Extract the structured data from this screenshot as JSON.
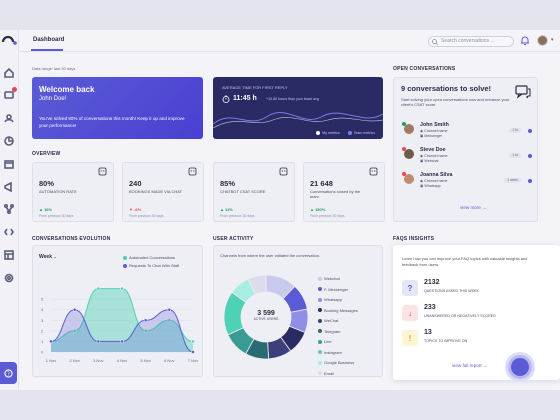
{
  "header": {
    "tab": "Dashboard",
    "search_placeholder": "Search conversations ..."
  },
  "date_range": "Data range: last 30 days",
  "welcome": {
    "title": "Welcome back",
    "name": "John Doe!",
    "message": "You've solved 80% of conversations this month! Keep it up and improve your performance!"
  },
  "first_reply": {
    "label": "AVERAGE TIME FOR FIRST REPLY",
    "value": "11:45 h",
    "delta": "+10.80 hours than your team avg",
    "legend_mine": "My metrics",
    "legend_team": "Team metrics"
  },
  "sections": {
    "overview": "OVERVIEW",
    "evolution": "CONVERSATIONS EVOLUTION",
    "user_activity": "USER ACTIVITY",
    "open_conversations": "OPEN CONVERSATIONS",
    "faqs": "FAQS INSIGHTS"
  },
  "kpis": [
    {
      "value": "80%",
      "label": "AUTOMATION RATE",
      "change": "16%",
      "prev": "From previous 30 days",
      "trend": "up"
    },
    {
      "value": "240",
      "label": "BOOKINGS MADE VIA CHAT",
      "change": "-6%",
      "prev": "From previous 30 days",
      "trend": "down"
    },
    {
      "value": "85%",
      "label": "CHATBOT CSAT SCORE",
      "change": "11%",
      "prev": "From previous 30 days",
      "trend": "up"
    },
    {
      "value": "21 648",
      "label": "Conversations closed by the team",
      "change": "150%",
      "prev": "From previous 30 days",
      "trend": "up"
    }
  ],
  "evolution": {
    "period": "Week",
    "legend": [
      "Automated Conversations",
      "Requests To Chat With Staff"
    ]
  },
  "chart_data": {
    "type": "area",
    "categories": [
      "1 Nov",
      "2 Nov",
      "3 Nov",
      "4 Nov",
      "5 Nov",
      "6 Nov",
      "7 Nov"
    ],
    "series": [
      {
        "name": "Automated Conversations",
        "values": [
          1,
          2,
          6,
          6,
          2,
          3,
          1
        ]
      },
      {
        "name": "Requests To Chat With Staff",
        "values": [
          1,
          4,
          1,
          1,
          3,
          4,
          0
        ]
      }
    ],
    "y_ticks": [
      "5",
      "4",
      "3",
      "2",
      "1",
      "0"
    ],
    "ylim": [
      0,
      7
    ]
  },
  "user_activity": {
    "subtitle": "Channels from where the user initiated the conversation.",
    "total": "3 599",
    "total_label": "ACTIVE USERS",
    "channels": [
      {
        "name": "Webchat",
        "value": 12,
        "color": "#c9c9ee"
      },
      {
        "name": "F. Messenger",
        "value": 10,
        "color": "#5b5bd6"
      },
      {
        "name": "Whatsapp",
        "value": 9,
        "color": "#8f8fe6"
      },
      {
        "name": "Booking Messages",
        "value": 9,
        "color": "#2a2b65"
      },
      {
        "name": "WeChat",
        "value": 9,
        "color": "#3d3f7a"
      },
      {
        "name": "Telegram",
        "value": 9,
        "color": "#2a6b73"
      },
      {
        "name": "Line",
        "value": 10,
        "color": "#3a9a94"
      },
      {
        "name": "Instagram",
        "value": 17,
        "color": "#4fd1b5"
      },
      {
        "name": "Google Business",
        "value": 8,
        "color": "#a9ece0"
      },
      {
        "name": "Email",
        "value": 7,
        "color": "#dcdcee"
      }
    ]
  },
  "open_conversations": {
    "headline": "9 conversations to solve!",
    "subtitle": "Start solving your open conversations now and enhance your client's CSAT score.",
    "items": [
      {
        "name": "John Smith",
        "channel_label": "Channel name",
        "channel": "Messenger",
        "time": "1 hr",
        "status_color": "#1f9d55",
        "avatar_color": "#a07a63"
      },
      {
        "name": "Steve Doe",
        "channel_label": "Channel name",
        "channel": "Webchat",
        "time": "1 hr",
        "status_color": "#e5484d",
        "avatar_color": "#6d5a4c"
      },
      {
        "name": "Joanna Silva",
        "channel_label": "Channel name",
        "channel": "Whatsapp",
        "time": "1 week",
        "status_color": "#e5484d",
        "avatar_color": "#c08a70"
      }
    ],
    "view_more": "view more"
  },
  "faqs": {
    "subtitle": "Learn how you can improve your FAQ topics with valuable insights and feedback from users.",
    "rows": [
      {
        "value": "2132",
        "label": "QUESTIONS ASKED THIS WEEK",
        "color": "#5b5bd6",
        "bg": "#e6e6fa"
      },
      {
        "value": "233",
        "label": "UNANSWERED OR NEGATIVELY SCORED",
        "color": "#e5484d",
        "bg": "#fde4e4"
      },
      {
        "value": "13",
        "label": "TOPICS TO IMPROVE ON",
        "color": "#e0b400",
        "bg": "#fdf5d6"
      }
    ],
    "view_report": "view full report"
  }
}
